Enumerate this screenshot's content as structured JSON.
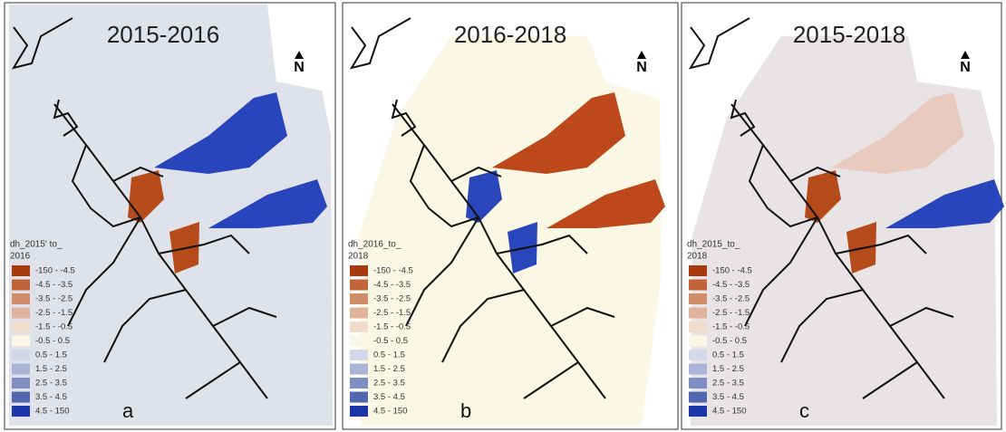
{
  "panels": [
    {
      "title": "2015-2016",
      "legend_title": [
        "dh_2015' to_",
        "2016"
      ],
      "letter": "a",
      "north": "N",
      "legend": [
        "-150 - -4.5",
        "-4.5 - -3.5",
        "-3.5 - -2.5",
        "-2.5 - -1.5",
        "-1.5 - -0.5",
        "-0.5 - 0.5",
        "0.5 - 1.5",
        "1.5 - 2.5",
        "2.5 - 3.5",
        "3.5 - 4.5",
        "4.5 - 150"
      ]
    },
    {
      "title": "2016-2018",
      "legend_title": [
        "dh_2016_to_",
        "2018"
      ],
      "letter": "b",
      "north": "N",
      "legend": [
        "-150 - -4.5",
        "-4.5 - -3.5",
        "-3.5 - -2.5",
        "-2.5 - -1.5",
        "-1.5 - -0.5",
        "-0.5 - 0.5",
        "0.5 - 1.5",
        "1.5 - 2.5",
        "2.5 - 3.5",
        "3.5 - 4.5",
        "4.5 - 150"
      ]
    },
    {
      "title": "2015-2018",
      "legend_title": [
        "dh_2015_to_",
        "2018"
      ],
      "letter": "c",
      "north": "N",
      "legend": [
        "-150 - -4.5",
        "-4.5 - -3.5",
        "-3.5 - -2.5",
        "-2.5 - -1.5",
        "-1.5 - -0.5",
        "-0.5 - 0.5",
        "0.5 - 1.5",
        "1.5 - 2.5",
        "2.5 - 3.5",
        "3.5 - 4.5",
        "4.5 - 150"
      ]
    }
  ],
  "legend_colors": [
    "#a83a0f",
    "#c2643a",
    "#d18c6a",
    "#e0b49c",
    "#f0dccb",
    "#fbf7e6",
    "#d3d8e8",
    "#aab5d6",
    "#7f8fc4",
    "#5366b0",
    "#1a36a8"
  ]
}
